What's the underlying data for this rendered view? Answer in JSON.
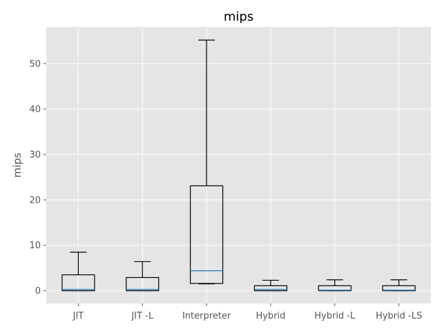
{
  "chart_data": {
    "type": "box",
    "title": "mips",
    "xlabel": "",
    "ylabel": "mips",
    "ylim": [
      -2.8,
      58.1
    ],
    "yticks": [
      0,
      10,
      20,
      30,
      40,
      50
    ],
    "grid": true,
    "categories": [
      "JIT",
      "JIT -L",
      "Interpreter",
      "Hybrid",
      "Hybrid -L",
      "Hybrid -LS"
    ],
    "boxes": [
      {
        "whisker_low": 0.0,
        "q1": 0.0,
        "median": 0.3,
        "q3": 3.5,
        "whisker_high": 8.5
      },
      {
        "whisker_low": 0.0,
        "q1": 0.0,
        "median": 0.3,
        "q3": 2.9,
        "whisker_high": 6.4
      },
      {
        "whisker_low": 1.5,
        "q1": 1.6,
        "median": 4.4,
        "q3": 23.1,
        "whisker_high": 55.2
      },
      {
        "whisker_low": 0.0,
        "q1": 0.0,
        "median": 0.3,
        "q3": 1.1,
        "whisker_high": 2.3
      },
      {
        "whisker_low": 0.0,
        "q1": 0.0,
        "median": 0.1,
        "q3": 1.1,
        "whisker_high": 2.4
      },
      {
        "whisker_low": 0.0,
        "q1": 0.0,
        "median": 0.1,
        "q3": 1.1,
        "whisker_high": 2.4
      }
    ],
    "colors": {
      "plot_background": "#e5e5e5",
      "grid": "#ffffff",
      "box_edge": "#000000",
      "median": "#1f77b4"
    }
  }
}
